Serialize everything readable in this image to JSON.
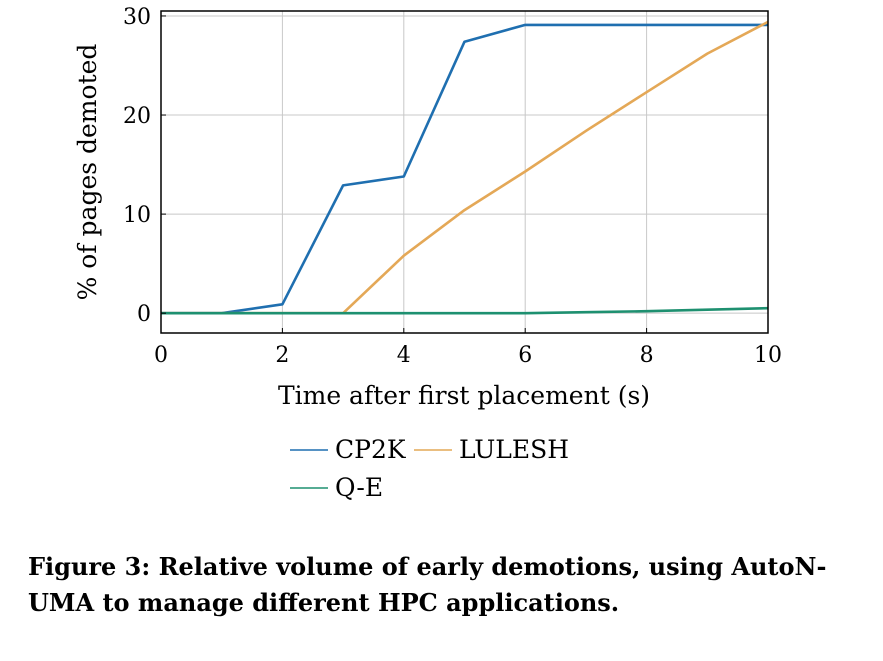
{
  "chart_data": {
    "type": "line",
    "title": "",
    "xlabel": "Time after first placement (s)",
    "ylabel": "% of pages demoted",
    "xlim": [
      0,
      10
    ],
    "ylim": [
      -2,
      30.5
    ],
    "xticks": [
      0,
      2,
      4,
      6,
      8,
      10
    ],
    "yticks": [
      0,
      10,
      20,
      30
    ],
    "xtick_labels": [
      "0",
      "2",
      "4",
      "6",
      "8",
      "10"
    ],
    "ytick_labels": [
      "0",
      "10",
      "20",
      "30"
    ],
    "grid": true,
    "legend_position": "below",
    "series": [
      {
        "name": "CP2K",
        "color": "#1f6fb0",
        "x": [
          0,
          1,
          2,
          3,
          4,
          5,
          6,
          7,
          8,
          9,
          10
        ],
        "y": [
          0,
          0,
          0.9,
          12.9,
          13.8,
          27.4,
          29.1,
          29.1,
          29.1,
          29.1,
          29.1
        ]
      },
      {
        "name": "LULESH",
        "color": "#e4a857",
        "x": [
          0,
          1,
          2,
          3,
          4,
          5,
          6,
          7,
          8,
          9,
          10
        ],
        "y": [
          0,
          0,
          0,
          0,
          5.8,
          10.4,
          14.3,
          18.4,
          22.3,
          26.2,
          29.4
        ]
      },
      {
        "name": "Q-E",
        "color": "#1e9070",
        "x": [
          0,
          1,
          2,
          3,
          4,
          5,
          6,
          7,
          8,
          9,
          10
        ],
        "y": [
          0,
          0,
          0,
          0,
          0,
          0,
          0,
          0.1,
          0.2,
          0.35,
          0.5
        ]
      }
    ]
  },
  "caption": "Figure 3: Relative volume of early demotions, using AutoN-UMA to manage different HPC applications."
}
